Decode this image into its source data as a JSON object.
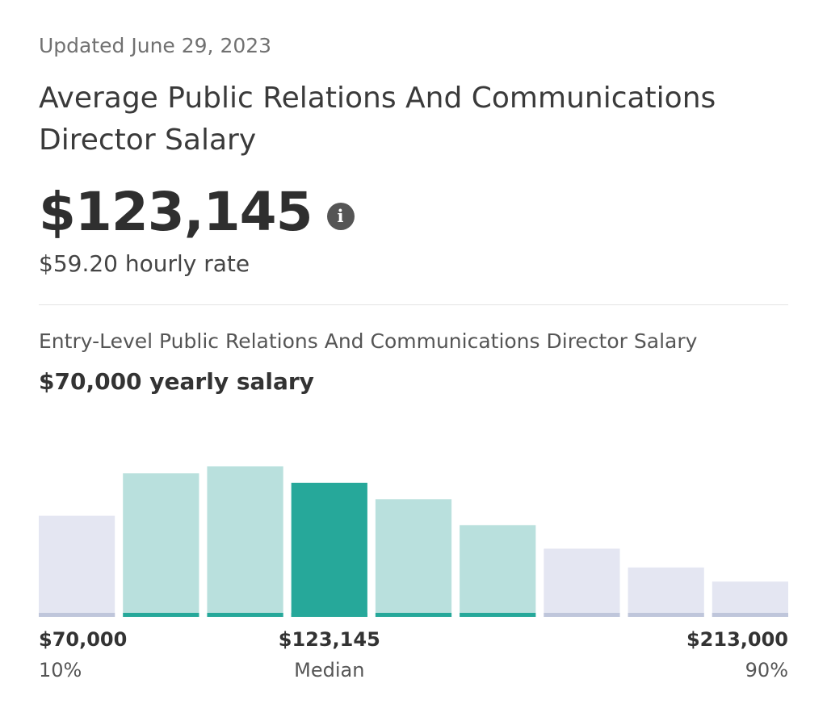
{
  "header": {
    "updated": "Updated June 29, 2023",
    "title": "Average Public Relations And Communications Director Salary",
    "salary": "$123,145",
    "info_icon": "info-icon",
    "hourly": "$59.20 hourly rate"
  },
  "entry": {
    "label": "Entry-Level Public Relations And Communications Director Salary",
    "value": "$70,000 yearly salary"
  },
  "chart_data": {
    "type": "bar",
    "title": "",
    "xlabel": "",
    "ylabel": "",
    "values": [
      43,
      61,
      64,
      57,
      50,
      39,
      29,
      21,
      15
    ],
    "highlight_index": 3,
    "range_start_index": 1,
    "range_end_index": 5,
    "ylim": [
      0,
      70
    ],
    "grid": false,
    "colors": {
      "outside": "#e4e6f2",
      "outside_base": "#bfc6db",
      "inside": "#b9e0dd",
      "inside_base": "#26a89a",
      "median": "#26a89a"
    },
    "markers": [
      {
        "value": "$70,000",
        "label": "10%",
        "align": "left",
        "bar_index": 0
      },
      {
        "value": "$123,145",
        "label": "Median",
        "align": "center",
        "bar_index": 3
      },
      {
        "value": "$213,000",
        "label": "90%",
        "align": "right",
        "bar_index": 8
      }
    ]
  }
}
